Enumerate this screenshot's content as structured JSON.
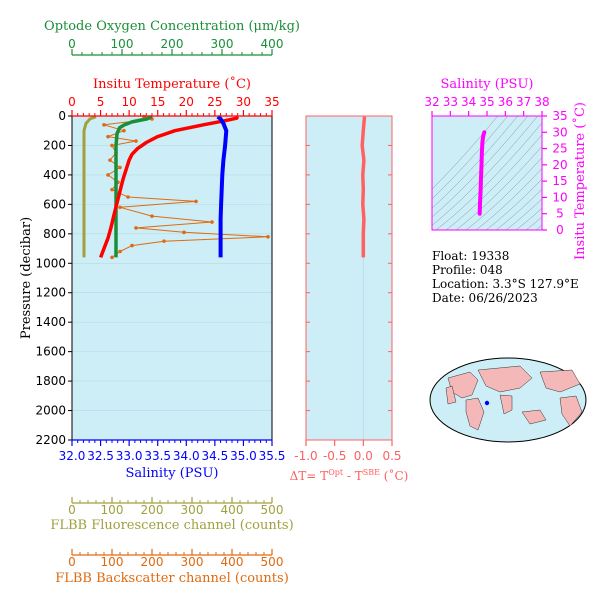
{
  "colors": {
    "oxygen": "#1a8f3a",
    "temperature": "#ff0000",
    "salinity": "#0000ff",
    "fluorescence": "#a0a040",
    "backscatter": "#e06a10",
    "deltaT": "#ff6060",
    "ts": "#ff00ff",
    "panel_bg": "#cdeef7",
    "axis": "#000000"
  },
  "info": {
    "float": "Float:  19338",
    "profile": "Profile:  048",
    "location": "Location:  3.3°S  127.9°E",
    "date": "Date:  06/26/2023"
  },
  "chart_data": [
    {
      "type": "line",
      "name": "main-profile",
      "ylabel": "Pressure (decibar)",
      "ylim": [
        2200,
        0
      ],
      "y_ticks": [
        "0",
        "200",
        "400",
        "600",
        "800",
        "1000",
        "1200",
        "1400",
        "1600",
        "1800",
        "2000",
        "2200"
      ],
      "axes": {
        "oxygen": {
          "label": "Optode Oxygen Concentration (μm/kg)",
          "range": [
            0,
            400
          ],
          "ticks": [
            "0",
            "100",
            "200",
            "300",
            "400"
          ]
        },
        "temperature": {
          "label": "Insitu Temperature (˚C)",
          "range": [
            0,
            35
          ],
          "ticks": [
            "0",
            "5",
            "10",
            "15",
            "20",
            "25",
            "30",
            "35"
          ]
        },
        "salinity": {
          "label": "Salinity (PSU)",
          "range": [
            32.0,
            35.5
          ],
          "ticks": [
            "32.0",
            "32.5",
            "33.0",
            "33.5",
            "34.0",
            "34.5",
            "35.0",
            "35.5"
          ]
        },
        "fluorescence": {
          "label": "FLBB Fluorescence channel (counts)",
          "range": [
            0,
            500
          ],
          "ticks": [
            "0",
            "100",
            "200",
            "300",
            "400",
            "500"
          ]
        },
        "backscatter": {
          "label": "FLBB Backscatter channel (counts)",
          "range": [
            0,
            500
          ],
          "ticks": [
            "0",
            "100",
            "200",
            "300",
            "400",
            "500"
          ]
        }
      },
      "series": {
        "temperature": [
          [
            29,
            5
          ],
          [
            28.8,
            15
          ],
          [
            27,
            30
          ],
          [
            23,
            60
          ],
          [
            18,
            100
          ],
          [
            15,
            140
          ],
          [
            13,
            180
          ],
          [
            11.5,
            220
          ],
          [
            10.5,
            260
          ],
          [
            10,
            300
          ],
          [
            9.5,
            360
          ],
          [
            9,
            420
          ],
          [
            8.6,
            480
          ],
          [
            8.2,
            540
          ],
          [
            7.8,
            600
          ],
          [
            7.3,
            680
          ],
          [
            6.8,
            760
          ],
          [
            6.3,
            830
          ],
          [
            5.8,
            880
          ],
          [
            5.3,
            930
          ],
          [
            5.0,
            960
          ]
        ],
        "salinity": [
          [
            34.55,
            5
          ],
          [
            34.6,
            20
          ],
          [
            34.65,
            50
          ],
          [
            34.7,
            100
          ],
          [
            34.68,
            200
          ],
          [
            34.65,
            300
          ],
          [
            34.63,
            400
          ],
          [
            34.62,
            500
          ],
          [
            34.61,
            600
          ],
          [
            34.6,
            700
          ],
          [
            34.6,
            800
          ],
          [
            34.6,
            900
          ],
          [
            34.6,
            960
          ]
        ],
        "oxygen": [
          [
            160,
            5
          ],
          [
            150,
            20
          ],
          [
            120,
            40
          ],
          [
            105,
            60
          ],
          [
            95,
            80
          ],
          [
            90,
            120
          ],
          [
            88,
            200
          ],
          [
            88,
            300
          ],
          [
            88,
            400
          ],
          [
            88,
            500
          ],
          [
            88,
            600
          ],
          [
            88,
            700
          ],
          [
            88,
            800
          ],
          [
            88,
            900
          ],
          [
            88,
            960
          ]
        ],
        "fluorescence": [
          [
            60,
            5
          ],
          [
            45,
            20
          ],
          [
            35,
            50
          ],
          [
            30,
            100
          ],
          [
            30,
            200
          ],
          [
            30,
            400
          ],
          [
            30,
            600
          ],
          [
            30,
            800
          ],
          [
            30,
            960
          ]
        ],
        "backscatter": [
          [
            180,
            5
          ],
          [
            200,
            20
          ],
          [
            80,
            60
          ],
          [
            130,
            100
          ],
          [
            90,
            140
          ],
          [
            160,
            170
          ],
          [
            100,
            200
          ],
          [
            110,
            250
          ],
          [
            95,
            300
          ],
          [
            120,
            350
          ],
          [
            90,
            400
          ],
          [
            115,
            450
          ],
          [
            100,
            500
          ],
          [
            140,
            550
          ],
          [
            310,
            580
          ],
          [
            120,
            620
          ],
          [
            200,
            680
          ],
          [
            350,
            720
          ],
          [
            160,
            760
          ],
          [
            280,
            790
          ],
          [
            490,
            820
          ],
          [
            230,
            850
          ],
          [
            150,
            880
          ],
          [
            120,
            920
          ],
          [
            100,
            960
          ]
        ]
      }
    },
    {
      "type": "line",
      "name": "delta-t",
      "xlabel": "ΔT= Tᴼᵖᵗ - Tˢᴮᴱ (˚C)",
      "xlabel_main": "ΔT= T",
      "xlabel_sup1": "Opt",
      "xlabel_mid": " - T",
      "xlabel_sup2": "SBE",
      "xlabel_end": " (˚C)",
      "xlim": [
        -1.0,
        0.5
      ],
      "x_ticks": [
        "-1.0",
        "-0.5",
        "0.0",
        "0.5"
      ],
      "ylim": [
        2200,
        0
      ],
      "series": [
        {
          "name": "deltaT",
          "points": [
            [
              0.02,
              5
            ],
            [
              0.0,
              100
            ],
            [
              -0.02,
              200
            ],
            [
              0.01,
              300
            ],
            [
              -0.01,
              400
            ],
            [
              0.0,
              500
            ],
            [
              -0.01,
              600
            ],
            [
              0.01,
              700
            ],
            [
              0.0,
              800
            ],
            [
              0.0,
              900
            ],
            [
              0.0,
              960
            ]
          ]
        }
      ]
    },
    {
      "type": "scatter",
      "name": "ts-diagram",
      "title": "Salinity (PSU)",
      "ylabel": "Insitu Temperature (˚C)",
      "xlim": [
        32,
        38
      ],
      "ylim": [
        0,
        35
      ],
      "x_ticks": [
        "32",
        "33",
        "34",
        "35",
        "36",
        "37",
        "38"
      ],
      "y_ticks": [
        "0",
        "5",
        "10",
        "15",
        "20",
        "25",
        "30",
        "35"
      ],
      "series": [
        {
          "name": "ts",
          "points": [
            [
              34.6,
              5
            ],
            [
              34.62,
              8
            ],
            [
              34.65,
              12
            ],
            [
              34.67,
              16
            ],
            [
              34.7,
              20
            ],
            [
              34.72,
              24
            ],
            [
              34.75,
              27
            ],
            [
              34.8,
              29
            ],
            [
              34.85,
              30
            ]
          ]
        }
      ]
    }
  ]
}
